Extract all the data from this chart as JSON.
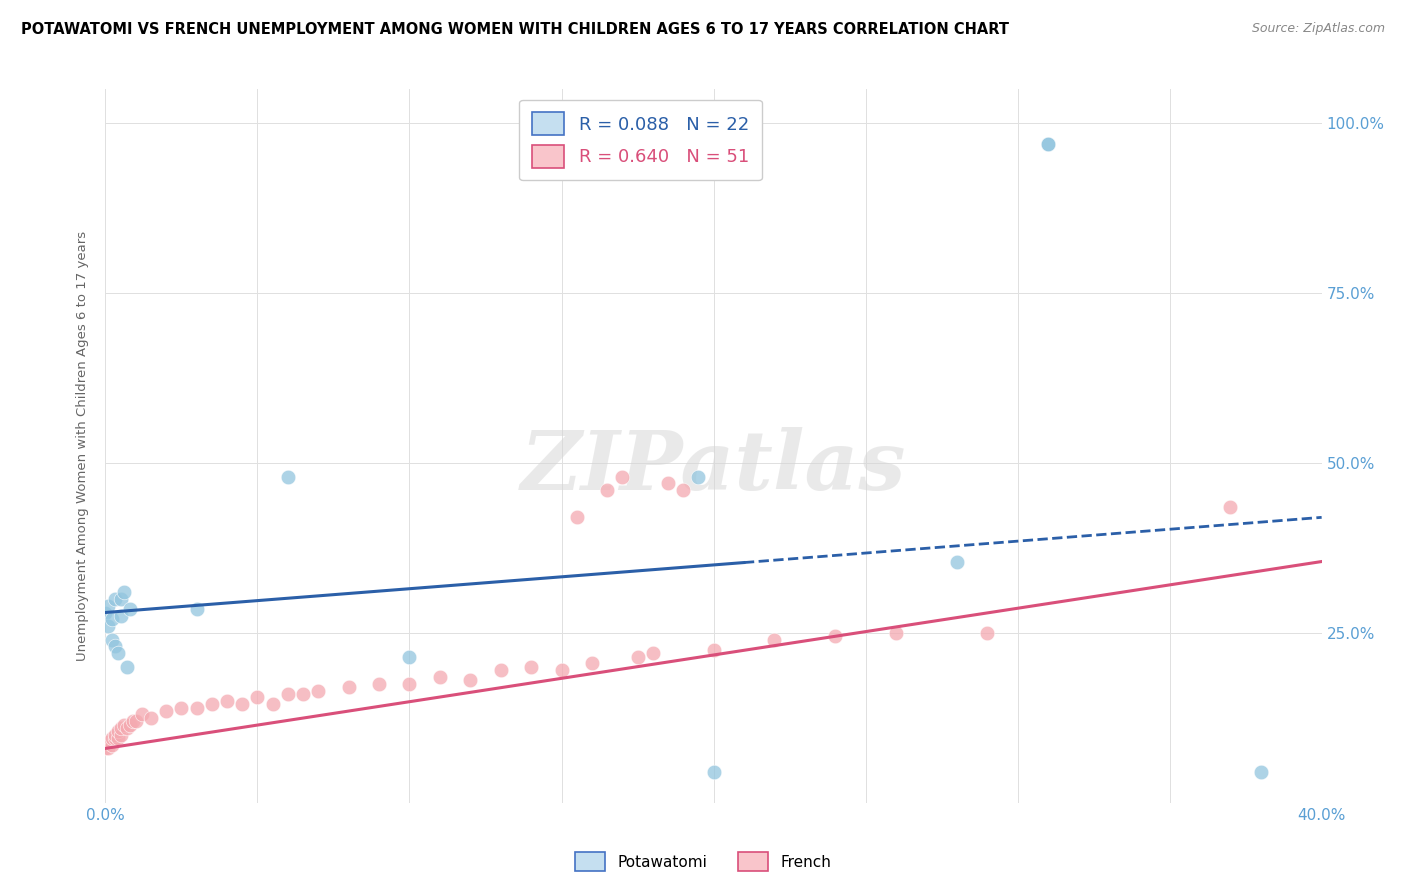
{
  "title": "POTAWATOMI VS FRENCH UNEMPLOYMENT AMONG WOMEN WITH CHILDREN AGES 6 TO 17 YEARS CORRELATION CHART",
  "source": "Source: ZipAtlas.com",
  "ylabel": "Unemployment Among Women with Children Ages 6 to 17 years",
  "xlim": [
    0.0,
    0.4
  ],
  "ylim": [
    0.0,
    1.05
  ],
  "x_ticks": [
    0.0,
    0.05,
    0.1,
    0.15,
    0.2,
    0.25,
    0.3,
    0.35,
    0.4
  ],
  "y_ticks": [
    0.0,
    0.25,
    0.5,
    0.75,
    1.0
  ],
  "potawatomi_color": "#92c5de",
  "french_color": "#f4a9b0",
  "potawatomi_line_color": "#2b5fa8",
  "french_line_color": "#d94f7a",
  "potawatomi_R": 0.088,
  "potawatomi_N": 22,
  "french_R": 0.64,
  "french_N": 51,
  "grid_color": "#e0e0e0",
  "background_color": "#ffffff",
  "potawatomi_x": [
    0.0,
    0.001,
    0.001,
    0.002,
    0.002,
    0.003,
    0.003,
    0.004,
    0.005,
    0.005,
    0.006,
    0.007,
    0.008,
    0.03,
    0.06,
    0.1,
    0.195,
    0.28,
    0.31,
    0.31,
    0.38,
    0.2
  ],
  "potawatomi_y": [
    0.28,
    0.29,
    0.26,
    0.27,
    0.24,
    0.3,
    0.23,
    0.22,
    0.275,
    0.3,
    0.31,
    0.2,
    0.285,
    0.285,
    0.48,
    0.215,
    0.48,
    0.355,
    0.97,
    0.97,
    0.045,
    0.045
  ],
  "french_x": [
    0.0,
    0.001,
    0.001,
    0.002,
    0.002,
    0.003,
    0.003,
    0.004,
    0.004,
    0.005,
    0.005,
    0.006,
    0.007,
    0.008,
    0.009,
    0.01,
    0.012,
    0.015,
    0.02,
    0.025,
    0.03,
    0.035,
    0.04,
    0.045,
    0.05,
    0.055,
    0.06,
    0.065,
    0.07,
    0.08,
    0.09,
    0.1,
    0.11,
    0.12,
    0.13,
    0.14,
    0.15,
    0.155,
    0.16,
    0.165,
    0.17,
    0.175,
    0.18,
    0.185,
    0.19,
    0.2,
    0.22,
    0.24,
    0.26,
    0.29,
    0.37
  ],
  "french_y": [
    0.08,
    0.08,
    0.09,
    0.085,
    0.095,
    0.095,
    0.1,
    0.095,
    0.105,
    0.1,
    0.11,
    0.115,
    0.11,
    0.115,
    0.12,
    0.12,
    0.13,
    0.125,
    0.135,
    0.14,
    0.14,
    0.145,
    0.15,
    0.145,
    0.155,
    0.145,
    0.16,
    0.16,
    0.165,
    0.17,
    0.175,
    0.175,
    0.185,
    0.18,
    0.195,
    0.2,
    0.195,
    0.42,
    0.205,
    0.46,
    0.48,
    0.215,
    0.22,
    0.47,
    0.46,
    0.225,
    0.24,
    0.245,
    0.25,
    0.25,
    0.435
  ],
  "pot_line_x0": 0.0,
  "pot_line_y0": 0.28,
  "pot_line_x1": 0.4,
  "pot_line_y1": 0.42,
  "fr_line_x0": 0.0,
  "fr_line_y0": 0.08,
  "fr_line_x1": 0.4,
  "fr_line_y1": 0.355
}
